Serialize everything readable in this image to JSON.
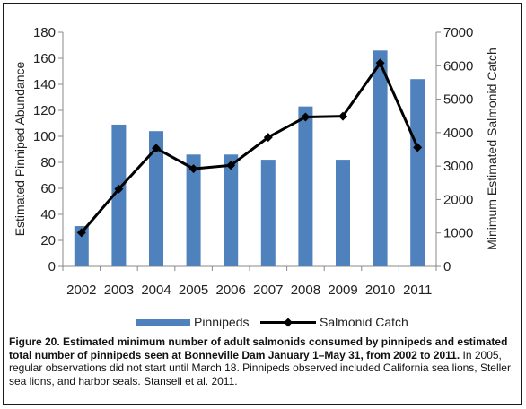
{
  "caption": {
    "figure_title": "Figure 20. Estimated minimum number of adult salmonids consumed by pinnipeds and estimated total number of pinnipeds seen at Bonneville Dam January 1–May 31, from 2002 to 2011.",
    "figure_note": "In 2005, regular observations did not start until March 18.  Pinnipeds observed included California sea lions, Steller sea lions, and harbor seals.  Stansell et al. 2011."
  },
  "chart_data": {
    "type": "bar",
    "categories": [
      "2002",
      "2003",
      "2004",
      "2005",
      "2006",
      "2007",
      "2008",
      "2009",
      "2010",
      "2011"
    ],
    "series": [
      {
        "name": "Pinnipeds",
        "type": "bar",
        "axis": "left",
        "color": "#4f81bd",
        "values": [
          31,
          109,
          104,
          86,
          86,
          82,
          123,
          82,
          166,
          144
        ]
      },
      {
        "name": "Salmonid Catch",
        "type": "line",
        "axis": "right",
        "color": "#000000",
        "marker": "diamond",
        "values": [
          1010,
          2313,
          3533,
          2920,
          3023,
          3859,
          4466,
          4489,
          6081,
          3557
        ]
      }
    ],
    "ylabel": "Estimated Pinniped Abundance",
    "y2label": "Minimum Estimated Salmonid Catch",
    "ylim": [
      0,
      180
    ],
    "y2lim": [
      0,
      7000
    ],
    "yticks": [
      "0",
      "20",
      "40",
      "60",
      "80",
      "100",
      "120",
      "140",
      "160",
      "180"
    ],
    "y2ticks": [
      "0",
      "1000",
      "2000",
      "3000",
      "4000",
      "5000",
      "6000",
      "7000"
    ],
    "grid": false,
    "legend": "bottom"
  }
}
